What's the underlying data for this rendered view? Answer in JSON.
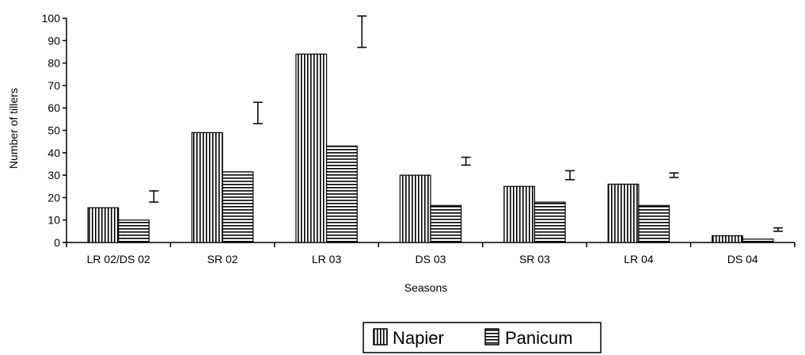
{
  "chart_data": {
    "type": "bar",
    "title": "",
    "xlabel": "Seasons",
    "ylabel": "Number of tillers",
    "ylim": [
      0,
      100
    ],
    "yticks": [
      0,
      10,
      20,
      30,
      40,
      50,
      60,
      70,
      80,
      90,
      100
    ],
    "categories": [
      "LR 02/DS 02",
      "SR 02",
      "LR 03",
      "DS 03",
      "SR 03",
      "LR 04",
      "DS 04"
    ],
    "series": [
      {
        "name": "Napier",
        "pattern": "vertical-stripes",
        "values": [
          15.5,
          49,
          84,
          30,
          25,
          26,
          3
        ]
      },
      {
        "name": "Panicum",
        "pattern": "horizontal-stripes",
        "values": [
          10,
          31.5,
          43,
          16.5,
          18,
          16.5,
          1.5
        ]
      }
    ],
    "error_bars": [
      {
        "low": 18,
        "high": 23
      },
      {
        "low": 53,
        "high": 62.5
      },
      {
        "low": 87,
        "high": 101
      },
      {
        "low": 34.5,
        "high": 38
      },
      {
        "low": 28,
        "high": 32
      },
      {
        "low": 29,
        "high": 31
      },
      {
        "low": 5,
        "high": 6.5
      }
    ],
    "legend_position": "bottom",
    "grid": false,
    "colors": {
      "bar_fill": "#ffffff",
      "stroke": "#000000"
    }
  }
}
